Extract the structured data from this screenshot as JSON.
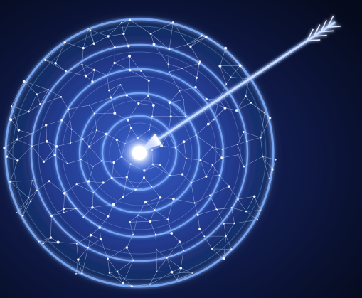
{
  "image": {
    "subject": "polygonal-wireframe-target-with-arrow",
    "colors": {
      "background_center": "#1a2a6e",
      "background_edge": "#050a1c",
      "ring_glow": "#7fb0ff",
      "ring_fill": "#1d3aa0",
      "mesh_line": "#cfe0ff",
      "node": "#ffffff",
      "core": "#ffffff"
    }
  }
}
